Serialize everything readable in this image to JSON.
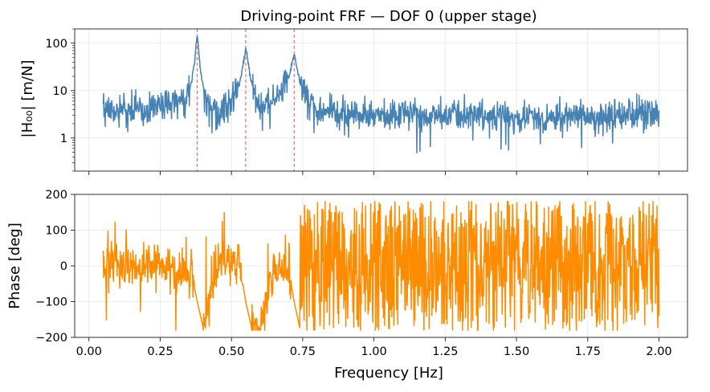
{
  "chart_data": [
    {
      "type": "line",
      "title": "Driving-point FRF — DOF 0 (upper stage)",
      "xlabel": "",
      "ylabel": "|H₀₀| [m/N]",
      "yscale": "log",
      "ylim": [
        0.2,
        200
      ],
      "xlim": [
        -0.05,
        2.1
      ],
      "yticks": [
        1,
        10,
        100
      ],
      "ytick_labels": [
        "1",
        "10",
        "100"
      ],
      "xtick_labels_visible": false,
      "grid": true,
      "colors": {
        "series": "#4682b4",
        "markers": "#ff4d4d"
      },
      "resonances_hz": [
        0.38,
        0.55,
        0.72
      ],
      "series": [
        {
          "x": [
            0.05,
            0.1,
            0.15,
            0.2,
            0.25,
            0.3,
            0.34,
            0.36,
            0.37,
            0.38,
            0.39,
            0.4,
            0.42,
            0.45,
            0.5,
            0.53,
            0.55,
            0.57,
            0.6,
            0.65,
            0.7,
            0.72,
            0.74,
            0.8,
            0.9,
            1.0,
            1.1,
            1.2,
            1.3,
            1.4,
            1.5,
            1.6,
            1.7,
            1.8,
            1.9,
            2.0
          ],
          "values": [
            3.5,
            4.0,
            4.5,
            4.0,
            5.0,
            5.5,
            8.0,
            15,
            40,
            150,
            30,
            12,
            5,
            3.5,
            5.5,
            15,
            75,
            15,
            4,
            6,
            18,
            60,
            15,
            4,
            3.5,
            3.0,
            3.5,
            3.2,
            3.0,
            2.8,
            3.0,
            2.5,
            3.0,
            2.8,
            3.0,
            3.5
          ]
        }
      ]
    },
    {
      "type": "line",
      "title": "",
      "xlabel": "Frequency [Hz]",
      "ylabel": "Phase [deg]",
      "ylim": [
        -200,
        200
      ],
      "xlim": [
        -0.05,
        2.1
      ],
      "yticks": [
        -200,
        -100,
        0,
        100,
        200
      ],
      "ytick_labels": [
        "−200",
        "−100",
        "0",
        "100",
        "200"
      ],
      "xticks": [
        0.0,
        0.25,
        0.5,
        0.75,
        1.0,
        1.25,
        1.5,
        1.75,
        2.0
      ],
      "xtick_labels": [
        "0.00",
        "0.25",
        "0.50",
        "0.75",
        "1.00",
        "1.25",
        "1.50",
        "1.75",
        "2.00"
      ],
      "grid": true,
      "colors": {
        "series": "#ff8c00"
      },
      "series": [
        {
          "x": [
            0.05,
            0.1,
            0.15,
            0.2,
            0.25,
            0.3,
            0.36,
            0.38,
            0.4,
            0.45,
            0.5,
            0.53,
            0.55,
            0.57,
            0.6,
            0.65,
            0.7,
            0.72,
            0.74,
            1.0,
            1.5,
            2.0
          ],
          "values": [
            0,
            0,
            -10,
            0,
            0,
            -15,
            -20,
            -100,
            -170,
            0,
            20,
            0,
            -100,
            -170,
            -170,
            0,
            -10,
            -100,
            -175,
            0,
            0,
            0
          ]
        }
      ]
    }
  ]
}
